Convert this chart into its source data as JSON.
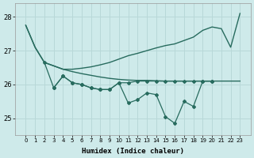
{
  "xlabel": "Humidex (Indice chaleur)",
  "x": [
    0,
    1,
    2,
    3,
    4,
    5,
    6,
    7,
    8,
    9,
    10,
    11,
    12,
    13,
    14,
    15,
    16,
    17,
    18,
    19,
    20,
    21,
    22,
    23
  ],
  "smooth_down": [
    27.75,
    27.1,
    26.65,
    26.55,
    26.45,
    26.38,
    26.32,
    26.27,
    26.22,
    26.18,
    26.15,
    26.13,
    26.12,
    26.12,
    26.11,
    26.1,
    26.1,
    26.1,
    26.1,
    26.1,
    26.1,
    26.1,
    26.1,
    26.1
  ],
  "smooth_up": [
    27.75,
    27.1,
    26.65,
    26.55,
    26.45,
    26.45,
    26.48,
    26.52,
    26.58,
    26.65,
    26.75,
    26.85,
    26.92,
    27.0,
    27.08,
    27.15,
    27.2,
    27.3,
    27.4,
    27.6,
    27.7,
    27.65,
    27.1,
    28.1
  ],
  "jagged_upper": [
    null,
    null,
    26.65,
    25.9,
    26.25,
    26.05,
    26.0,
    25.9,
    25.85,
    25.85,
    26.05,
    26.05,
    26.1,
    26.1,
    26.1,
    26.1,
    26.1,
    26.1,
    26.1,
    26.1,
    26.1,
    null,
    null,
    null
  ],
  "jagged_lower": [
    null,
    null,
    null,
    25.9,
    26.25,
    26.05,
    26.0,
    25.9,
    25.85,
    25.85,
    26.05,
    25.45,
    25.55,
    25.75,
    25.7,
    25.05,
    24.85,
    25.5,
    25.35,
    26.1,
    26.1,
    null,
    null,
    null
  ],
  "bg_color": "#ceeaea",
  "line_color": "#276b5e",
  "grid_color": "#b8d8d8",
  "ylim": [
    24.5,
    28.4
  ],
  "yticks": [
    25,
    26,
    27,
    28
  ],
  "xticks": [
    0,
    1,
    2,
    3,
    4,
    5,
    6,
    7,
    8,
    9,
    10,
    11,
    12,
    13,
    14,
    15,
    16,
    17,
    18,
    19,
    20,
    21,
    22,
    23
  ]
}
